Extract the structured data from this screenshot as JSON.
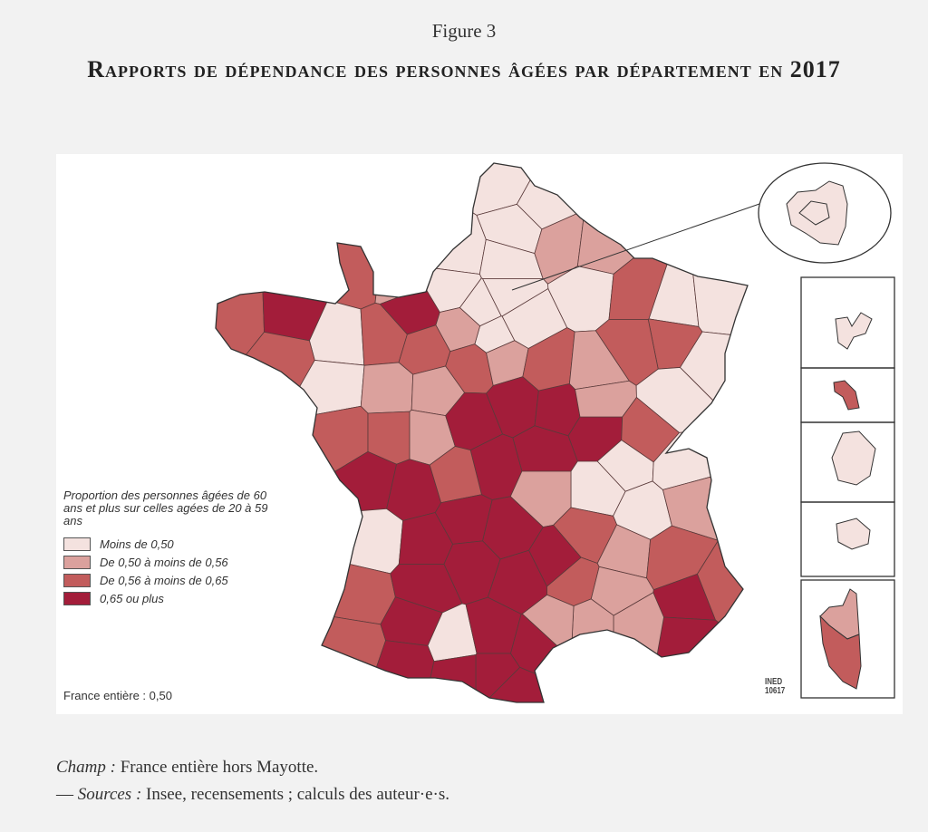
{
  "figure": {
    "label": "Figure 3",
    "title": "Rapports de dépendance des personnes âgées par département en 2017"
  },
  "map": {
    "legend": {
      "title": "Proportion des personnes âgées de 60 ans et plus sur celles agées de 20 à 59 ans",
      "items": [
        {
          "label": "Moins de 0,50",
          "color": "#f4e2df"
        },
        {
          "label": "De 0,50 à moins de 0,56",
          "color": "#dba19d"
        },
        {
          "label": "De 0,56 à moins de  0,65",
          "color": "#c25c5c"
        },
        {
          "label": "0,65 ou plus",
          "color": "#a31d3a"
        }
      ]
    },
    "france_total": "France entière : 0,50",
    "credit_line1": "INED",
    "credit_line2": "10617"
  },
  "caption": {
    "champ_label": "Champ :",
    "champ_text": " France entière hors Mayotte.",
    "sources_prefix": "— ",
    "sources_label": "Sources :",
    "sources_text": " Insee, recensements ; calculs des auteur·e·s."
  }
}
